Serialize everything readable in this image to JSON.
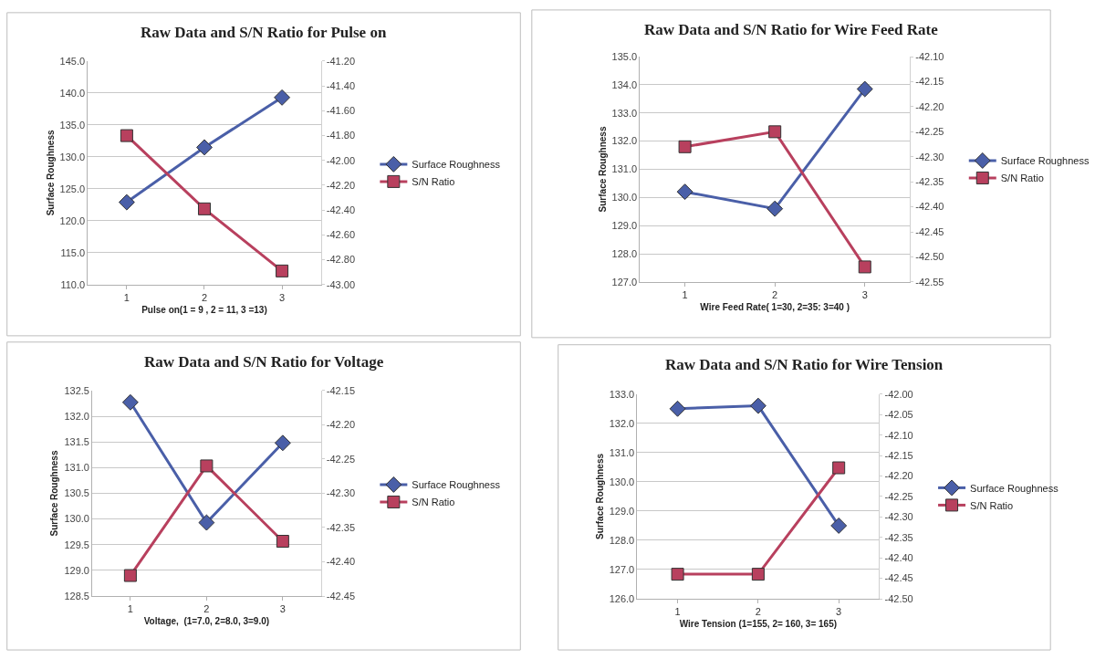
{
  "chart_data": [
    {
      "type": "line",
      "title": "Raw Data and S/N Ratio for Pulse on",
      "xlabel": "Pulse on(1 = 9 , 2 = 11, 3 =13)",
      "ylabel": "Surface Roughness",
      "categories": [
        "1",
        "2",
        "3"
      ],
      "grid": "y",
      "legend": "right",
      "line_style": "solid",
      "ylim": [
        110,
        145
      ],
      "yticks": [
        {
          "value": 110,
          "label": "110.0"
        },
        {
          "value": 115,
          "label": "115.0"
        },
        {
          "value": 120,
          "label": "120.0"
        },
        {
          "value": 125,
          "label": "125.0"
        },
        {
          "value": 130,
          "label": "130.0"
        },
        {
          "value": 135,
          "label": "135.0"
        },
        {
          "value": 140,
          "label": "140.0"
        },
        {
          "value": 145,
          "label": "145.0"
        }
      ],
      "y2lim": [
        -43.0,
        -41.2
      ],
      "y2ticks": [
        {
          "value": -43.0,
          "label": "-43.00"
        },
        {
          "value": -42.8,
          "label": "-42.80"
        },
        {
          "value": -42.6,
          "label": "-42.60"
        },
        {
          "value": -42.4,
          "label": "-42.40"
        },
        {
          "value": -42.2,
          "label": "-42.20"
        },
        {
          "value": -42.0,
          "label": "-42.00"
        },
        {
          "value": -41.8,
          "label": "-41.80"
        },
        {
          "value": -41.6,
          "label": "-41.60"
        },
        {
          "value": -41.4,
          "label": "-41.40"
        },
        {
          "value": -41.2,
          "label": "-41.20"
        }
      ],
      "series": [
        {
          "name": "Surface Roughness",
          "color": "#4a5fa8",
          "marker": "diamond",
          "values": [
            122.9,
            131.5,
            139.3
          ]
        },
        {
          "name": "S/N Ratio",
          "color": "#b8405e",
          "marker": "square",
          "axis": "y2",
          "values": [
            -41.8,
            -42.39,
            -42.89
          ]
        }
      ]
    },
    {
      "type": "line",
      "title": "Raw Data and S/N Ratio for Wire Feed Rate",
      "xlabel": "Wire Feed Rate( 1=30, 2=35: 3=40 )",
      "ylabel": "Surface Roughness",
      "categories": [
        "1",
        "2",
        "3"
      ],
      "grid": "y",
      "legend": "right",
      "line_style": "solid",
      "ylim": [
        127,
        135
      ],
      "yticks": [
        {
          "value": 127,
          "label": "127.0"
        },
        {
          "value": 128,
          "label": "128.0"
        },
        {
          "value": 129,
          "label": "129.0"
        },
        {
          "value": 130,
          "label": "130.0"
        },
        {
          "value": 131,
          "label": "131.0"
        },
        {
          "value": 132,
          "label": "132.0"
        },
        {
          "value": 133,
          "label": "133.0"
        },
        {
          "value": 134,
          "label": "134.0"
        },
        {
          "value": 135,
          "label": "135.0"
        }
      ],
      "y2lim": [
        -42.55,
        -42.1
      ],
      "y2ticks": [
        -42.55,
        {
          "value": -42.5,
          "label": "-42.50"
        },
        -42.45,
        {
          "value": -42.4,
          "label": "-42.40"
        },
        -42.35,
        {
          "value": -42.3,
          "label": "-42.30"
        },
        -42.25,
        {
          "value": -42.2,
          "label": "-42.20"
        },
        -42.15,
        {
          "value": -42.1,
          "label": "-42.10"
        }
      ],
      "series": [
        {
          "name": "Surface Roughness",
          "color": "#4a5fa8",
          "marker": "diamond",
          "values": [
            130.2,
            129.6,
            133.85
          ]
        },
        {
          "name": "S/N Ratio",
          "color": "#b8405e",
          "marker": "square",
          "axis": "y2",
          "values": [
            -42.28,
            -42.25,
            -42.52
          ]
        }
      ]
    },
    {
      "type": "line",
      "title": "Raw Data and S/N Ratio for Voltage",
      "xlabel": "Voltage,  (1=7.0, 2=8.0, 3=9.0)",
      "ylabel": "Surface Roughness",
      "categories": [
        "1",
        "2",
        "3"
      ],
      "grid": "y",
      "legend": "right",
      "line_style": "solid",
      "ylim": [
        128.5,
        132.5
      ],
      "yticks": [
        128.5,
        {
          "value": 129,
          "label": "129.0"
        },
        129.5,
        {
          "value": 130,
          "label": "130.0"
        },
        130.5,
        {
          "value": 131,
          "label": "131.0"
        },
        131.5,
        {
          "value": 132,
          "label": "132.0"
        },
        132.5
      ],
      "y2lim": [
        -42.45,
        -42.15
      ],
      "y2ticks": [
        -42.45,
        {
          "value": -42.4,
          "label": "-42.40"
        },
        -42.35,
        {
          "value": -42.3,
          "label": "-42.30"
        },
        -42.25,
        {
          "value": -42.2,
          "label": "-42.20"
        },
        -42.15
      ],
      "series": [
        {
          "name": "Surface Roughness",
          "color": "#4a5fa8",
          "marker": "diamond",
          "values": [
            132.27,
            129.93,
            131.48
          ]
        },
        {
          "name": "S/N Ratio",
          "color": "#b8405e",
          "marker": "square",
          "axis": "y2",
          "values": [
            -42.42,
            -42.26,
            -42.37
          ]
        }
      ]
    },
    {
      "type": "line",
      "title": "Raw Data and S/N Ratio for Wire Tension",
      "xlabel": "Wire Tension (1=155, 2= 160, 3= 165)",
      "ylabel": "Surface Roughness",
      "categories": [
        "1",
        "2",
        "3"
      ],
      "grid": "y",
      "legend": "right",
      "line_style": "solid",
      "ylim": [
        126,
        133
      ],
      "yticks": [
        {
          "value": 126,
          "label": "126.0"
        },
        {
          "value": 127,
          "label": "127.0"
        },
        {
          "value": 128,
          "label": "128.0"
        },
        {
          "value": 129,
          "label": "129.0"
        },
        {
          "value": 130,
          "label": "130.0"
        },
        {
          "value": 131,
          "label": "131.0"
        },
        {
          "value": 132,
          "label": "132.0"
        },
        {
          "value": 133,
          "label": "133.0"
        }
      ],
      "y2lim": [
        -42.5,
        -42.0
      ],
      "y2ticks": [
        {
          "value": -42.5,
          "label": "-42.50"
        },
        -42.45,
        {
          "value": -42.4,
          "label": "-42.40"
        },
        -42.35,
        {
          "value": -42.3,
          "label": "-42.30"
        },
        -42.25,
        {
          "value": -42.2,
          "label": "-42.20"
        },
        -42.15,
        {
          "value": -42.1,
          "label": "-42.10"
        },
        -42.05,
        {
          "value": -42.0,
          "label": "-42.00"
        }
      ],
      "series": [
        {
          "name": "Surface Roughness",
          "color": "#4a5fa8",
          "marker": "diamond",
          "values": [
            132.5,
            132.6,
            128.5
          ]
        },
        {
          "name": "S/N Ratio",
          "color": "#b8405e",
          "marker": "square",
          "axis": "y2",
          "values": [
            -42.44,
            -42.44,
            -42.18
          ]
        }
      ]
    }
  ]
}
